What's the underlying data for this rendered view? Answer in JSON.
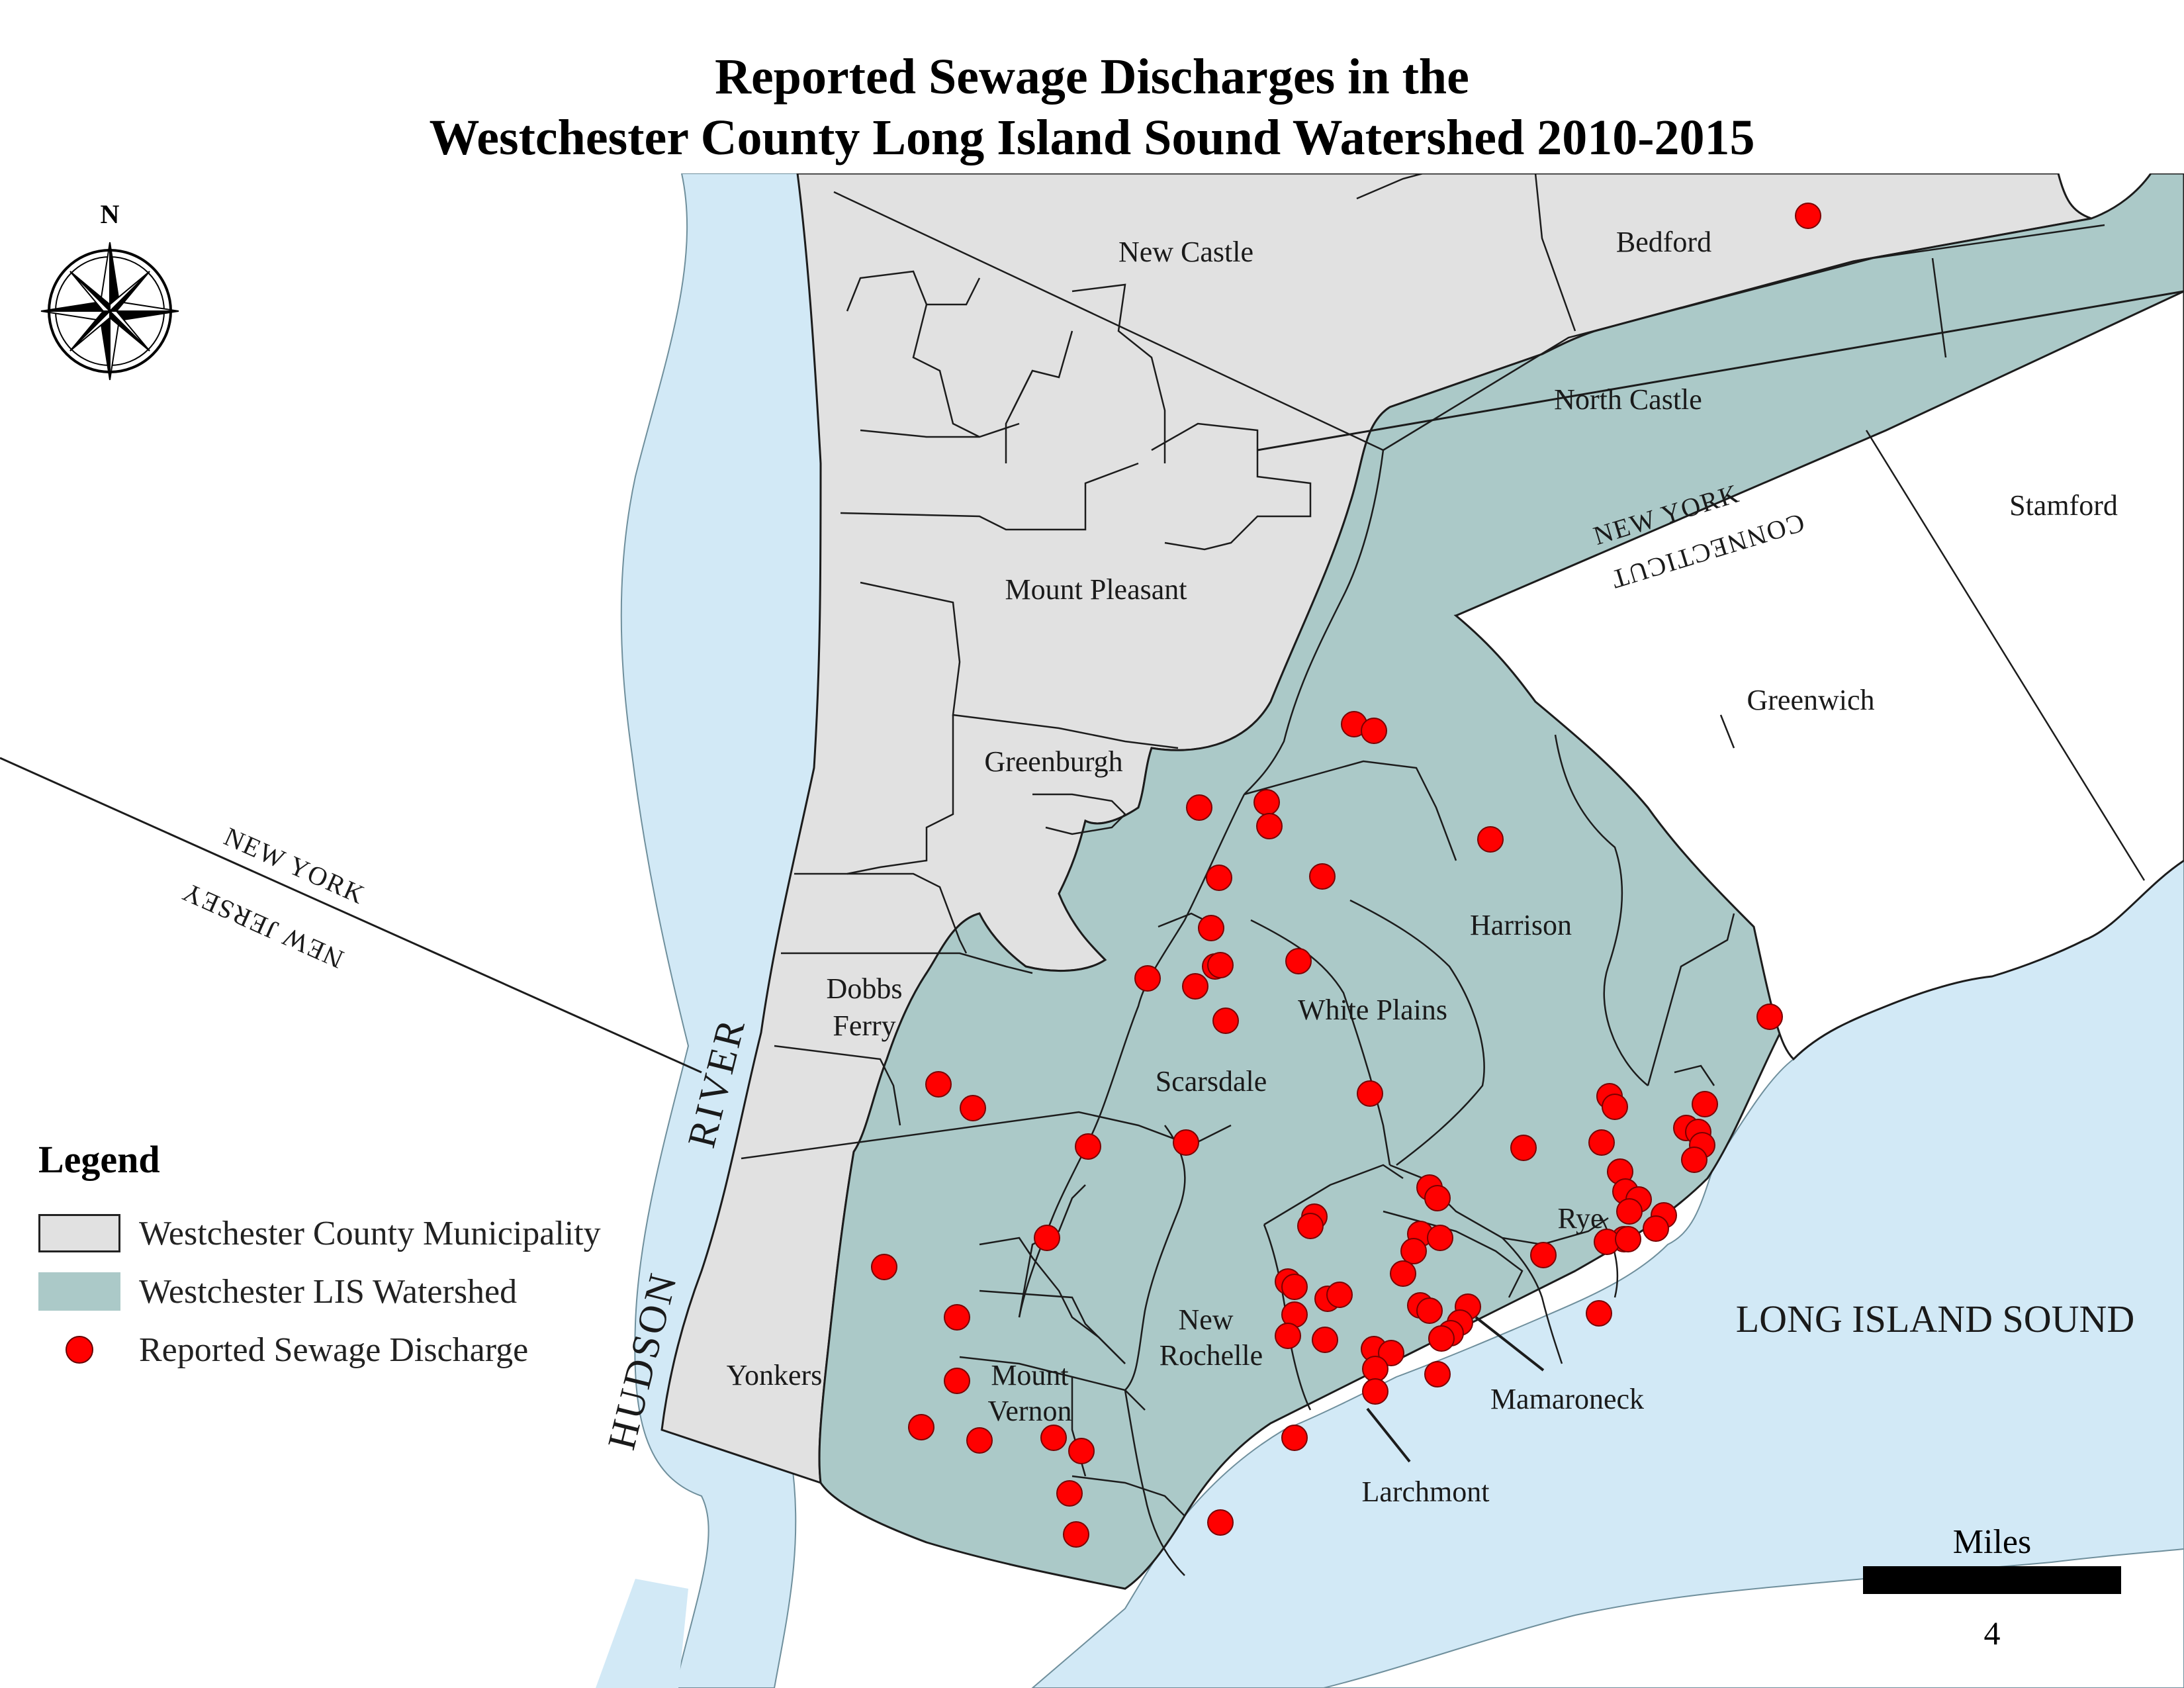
{
  "title": {
    "line1": "Reported Sewage Discharges in the",
    "line2": "Westchester County Long Island Sound Watershed 2010-2015"
  },
  "north_arrow": {
    "label": "N",
    "icon": "compass-rose-icon"
  },
  "colors": {
    "water": "#d2e9f6",
    "municipality": "#e1e1e1",
    "watershed": "#abc9c8",
    "border": "#1c1c1c",
    "discharge": "#ff0000"
  },
  "labels": {
    "new_castle": "New Castle",
    "bedford": "Bedford",
    "north_castle": "North Castle",
    "stamford": "Stamford",
    "mount_pleasant": "Mount Pleasant",
    "greenwich": "Greenwich",
    "greenburgh": "Greenburgh",
    "harrison": "Harrison",
    "white_plains": "White Plains",
    "dobbs": "Dobbs",
    "ferry": "Ferry",
    "scarsdale": "Scarsdale",
    "rye": "Rye",
    "new": "New",
    "rochelle": "Rochelle",
    "mount": "Mount",
    "vernon": "Vernon",
    "yonkers": "Yonkers",
    "mamaroneck": "Mamaroneck",
    "larchmont": "Larchmont",
    "long_island_sound": "LONG ISLAND SOUND",
    "hudson": "HUDSON",
    "river": "RIVER",
    "ny_upper": "NEW YORK",
    "ct": "CONNECTICUT",
    "ny_left": "NEW YORK",
    "nj": "NEW JERSEY"
  },
  "legend": {
    "title": "Legend",
    "items": [
      {
        "label": "Westchester County Municipality",
        "swatch": "#e1e1e1"
      },
      {
        "label": "Westchester LIS Watershed",
        "swatch": "#abc9c8"
      },
      {
        "label": "Reported Sewage Discharge",
        "swatch": "#ff0000"
      }
    ]
  },
  "scale": {
    "label": "Miles",
    "value": "4"
  }
}
